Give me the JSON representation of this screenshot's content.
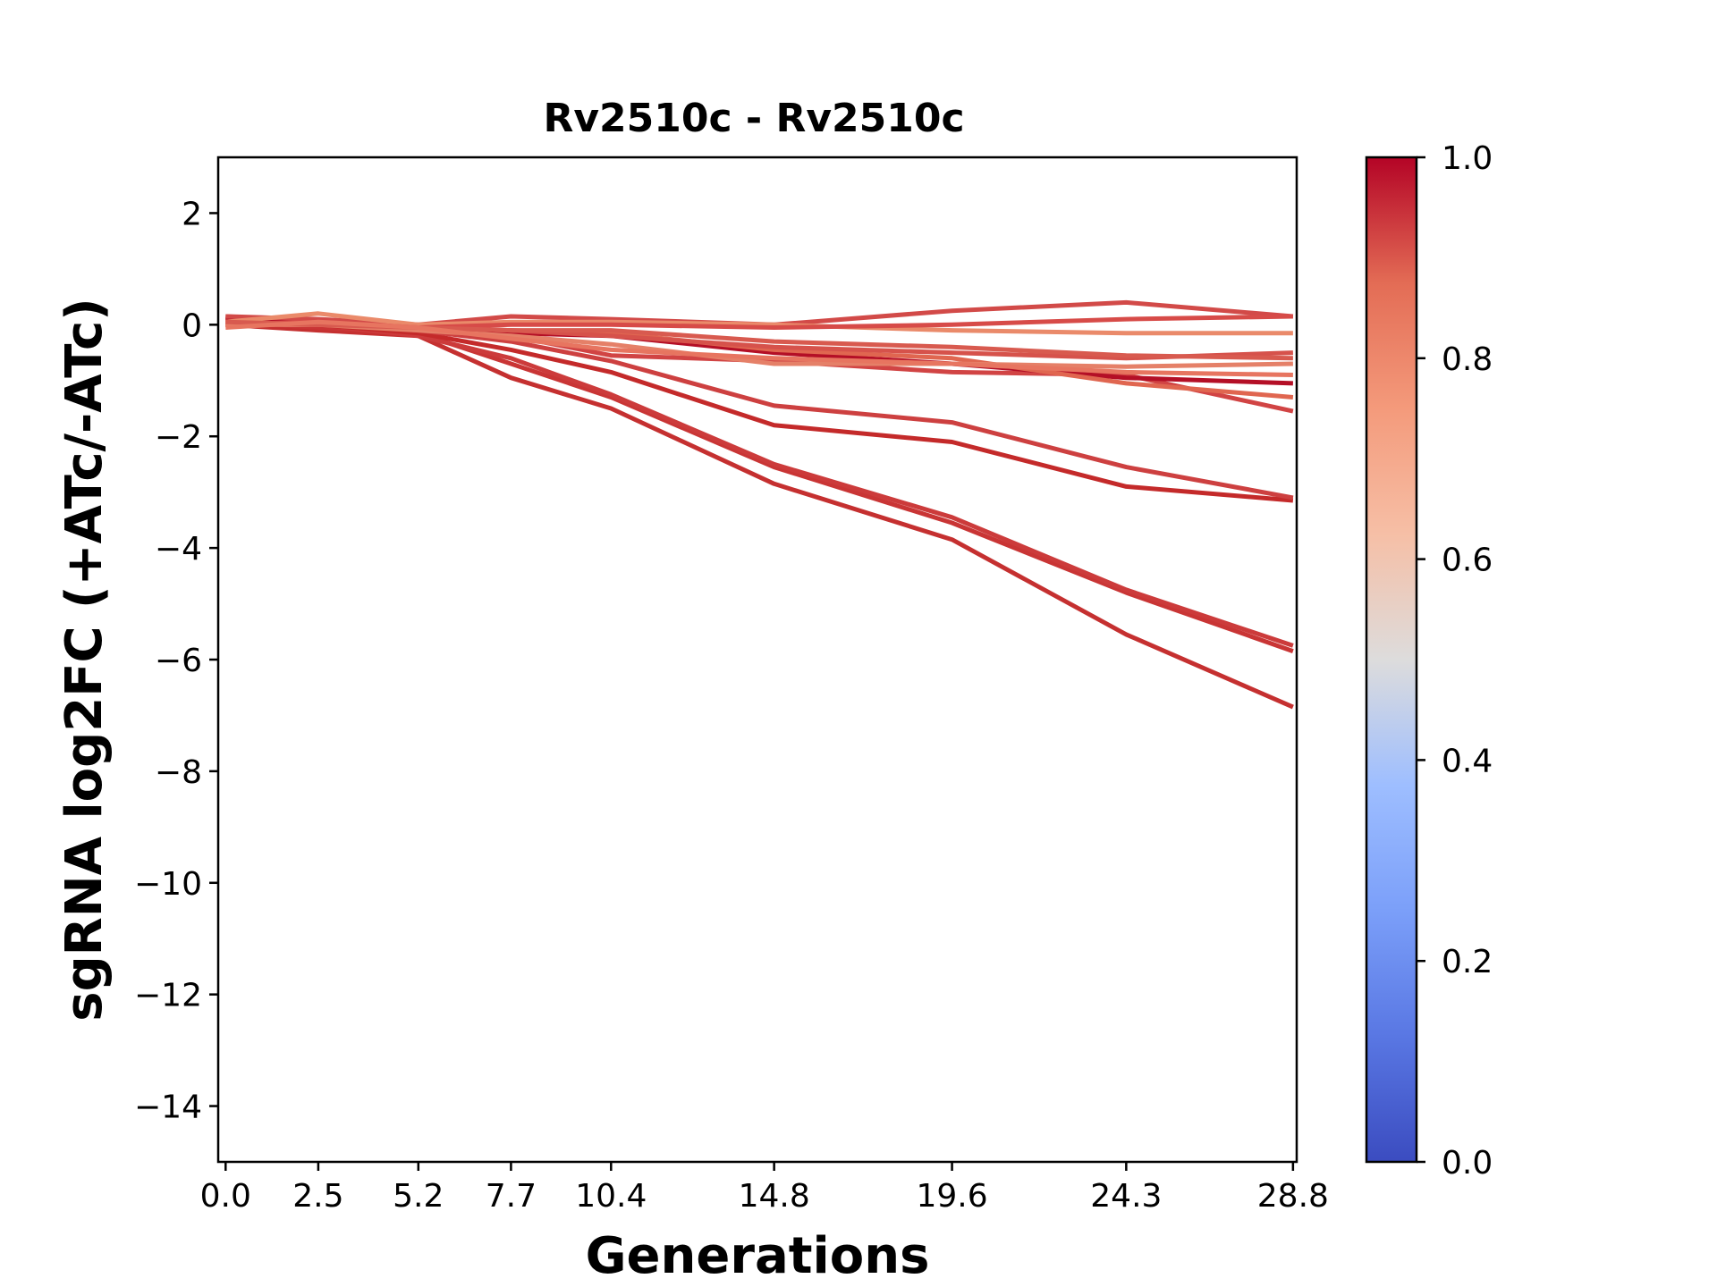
{
  "chart_data": {
    "type": "line",
    "title": "Rv2510c - Rv2510c",
    "xlabel": "Generations",
    "ylabel": "sgRNA log2FC (+ATc/-ATc)",
    "x": [
      0.0,
      2.5,
      5.2,
      7.7,
      10.4,
      14.8,
      19.6,
      24.3,
      28.8
    ],
    "x_tick_labels": [
      "0.0",
      "2.5",
      "5.2",
      "7.7",
      "10.4",
      "14.8",
      "19.6",
      "24.3",
      "28.8"
    ],
    "xlim": [
      -0.2,
      28.9
    ],
    "ylim": [
      -15,
      3
    ],
    "y_ticks": [
      2,
      0,
      -2,
      -4,
      -6,
      -8,
      -10,
      -12,
      -14
    ],
    "y_tick_labels": [
      "2",
      "0",
      "−2",
      "−4",
      "−6",
      "−8",
      "−10",
      "−12",
      "−14"
    ],
    "grid": false,
    "colorbar": {
      "range": [
        0.0,
        1.0
      ],
      "ticks": [
        0.0,
        0.2,
        0.4,
        0.6,
        0.8,
        1.0
      ],
      "tick_labels": [
        "0.0",
        "0.2",
        "0.4",
        "0.6",
        "0.8",
        "1.0"
      ],
      "colormap": "coolwarm"
    },
    "series": [
      {
        "values": [
          0.0,
          -0.1,
          -0.2,
          -0.95,
          -1.5,
          -2.85,
          -3.85,
          -5.55,
          -6.85
        ],
        "color": "#c53030"
      },
      {
        "values": [
          0.05,
          -0.05,
          -0.15,
          -0.7,
          -1.3,
          -2.55,
          -3.55,
          -4.8,
          -5.85
        ],
        "color": "#c93535"
      },
      {
        "values": [
          0.1,
          0.0,
          -0.2,
          -0.6,
          -1.25,
          -2.5,
          -3.45,
          -4.75,
          -5.75
        ],
        "color": "#cc3b3b"
      },
      {
        "values": [
          0.1,
          0.0,
          -0.15,
          -0.45,
          -0.85,
          -1.8,
          -2.1,
          -2.9,
          -3.15
        ],
        "color": "#c42a2a"
      },
      {
        "values": [
          0.1,
          0.05,
          -0.1,
          -0.3,
          -0.65,
          -1.45,
          -1.75,
          -2.55,
          -3.1
        ],
        "color": "#cd4040"
      },
      {
        "values": [
          0.15,
          0.05,
          -0.1,
          -0.2,
          -0.55,
          -0.65,
          -0.85,
          -0.9,
          -1.55
        ],
        "color": "#d14444"
      },
      {
        "values": [
          0.1,
          0.05,
          -0.05,
          -0.15,
          -0.2,
          -0.5,
          -0.7,
          -0.95,
          -1.05
        ],
        "color": "#b40f26"
      },
      {
        "values": [
          0.05,
          0.0,
          -0.05,
          -0.1,
          -0.15,
          -0.45,
          -0.6,
          -1.05,
          -1.3
        ],
        "color": "#e06650"
      },
      {
        "values": [
          0.0,
          0.0,
          -0.05,
          -0.1,
          -0.2,
          -0.4,
          -0.5,
          -0.6,
          -0.5
        ],
        "color": "#d6524b"
      },
      {
        "values": [
          0.15,
          0.1,
          0.0,
          0.15,
          0.1,
          0.0,
          0.25,
          0.4,
          0.15
        ],
        "color": "#d24a48"
      },
      {
        "values": [
          0.05,
          0.2,
          0.0,
          0.05,
          0.05,
          0.0,
          -0.1,
          -0.15,
          -0.15
        ],
        "color": "#ea8a6a"
      },
      {
        "values": [
          0.0,
          0.05,
          -0.05,
          0.0,
          0.0,
          -0.05,
          0.0,
          0.1,
          0.15
        ],
        "color": "#d74b48"
      },
      {
        "values": [
          0.0,
          0.0,
          -0.1,
          -0.2,
          -0.35,
          -0.7,
          -0.7,
          -0.75,
          -0.7
        ],
        "color": "#e58068"
      },
      {
        "values": [
          0.05,
          0.0,
          -0.05,
          -0.1,
          -0.1,
          -0.3,
          -0.4,
          -0.55,
          -0.6
        ],
        "color": "#d85a4f"
      },
      {
        "values": [
          -0.05,
          0.05,
          -0.05,
          -0.25,
          -0.45,
          -0.6,
          -0.7,
          -0.85,
          -0.9
        ],
        "color": "#e77560"
      }
    ]
  }
}
